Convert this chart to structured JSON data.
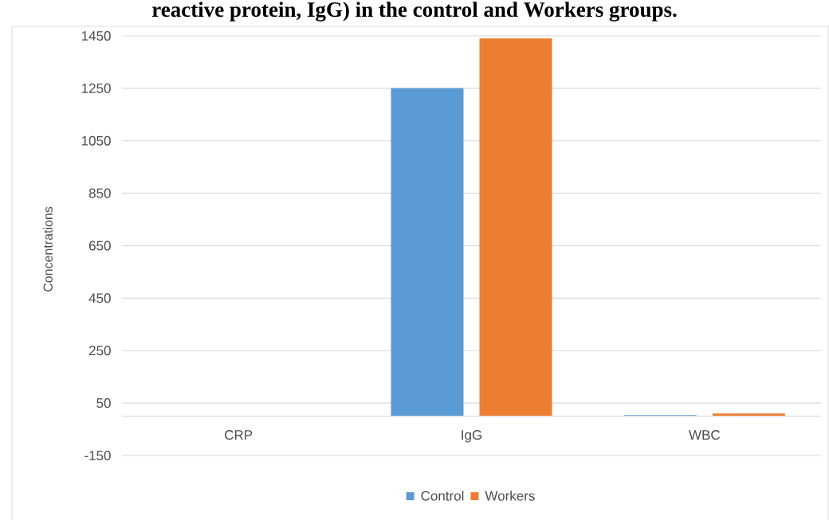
{
  "chart_data": {
    "type": "bar",
    "title": "reactive protein, IgG) in the control and Workers groups.",
    "ylabel": "Concentrations",
    "categories": [
      "CRP",
      "IgG",
      "WBC"
    ],
    "series": [
      {
        "name": "Control",
        "color": "#5b9bd5",
        "values": [
          null,
          1250,
          4
        ]
      },
      {
        "name": "Workers",
        "color": "#ed7d31",
        "values": [
          null,
          1440,
          10
        ]
      }
    ],
    "ylim": [
      -150,
      1450
    ],
    "yticks": [
      -150,
      50,
      250,
      450,
      650,
      850,
      1050,
      1250,
      1450
    ],
    "grid": "y",
    "legend": "bottom",
    "ref_lines": [
      {
        "axis": "y",
        "value": 0,
        "color": "#d9d9d9"
      }
    ]
  }
}
